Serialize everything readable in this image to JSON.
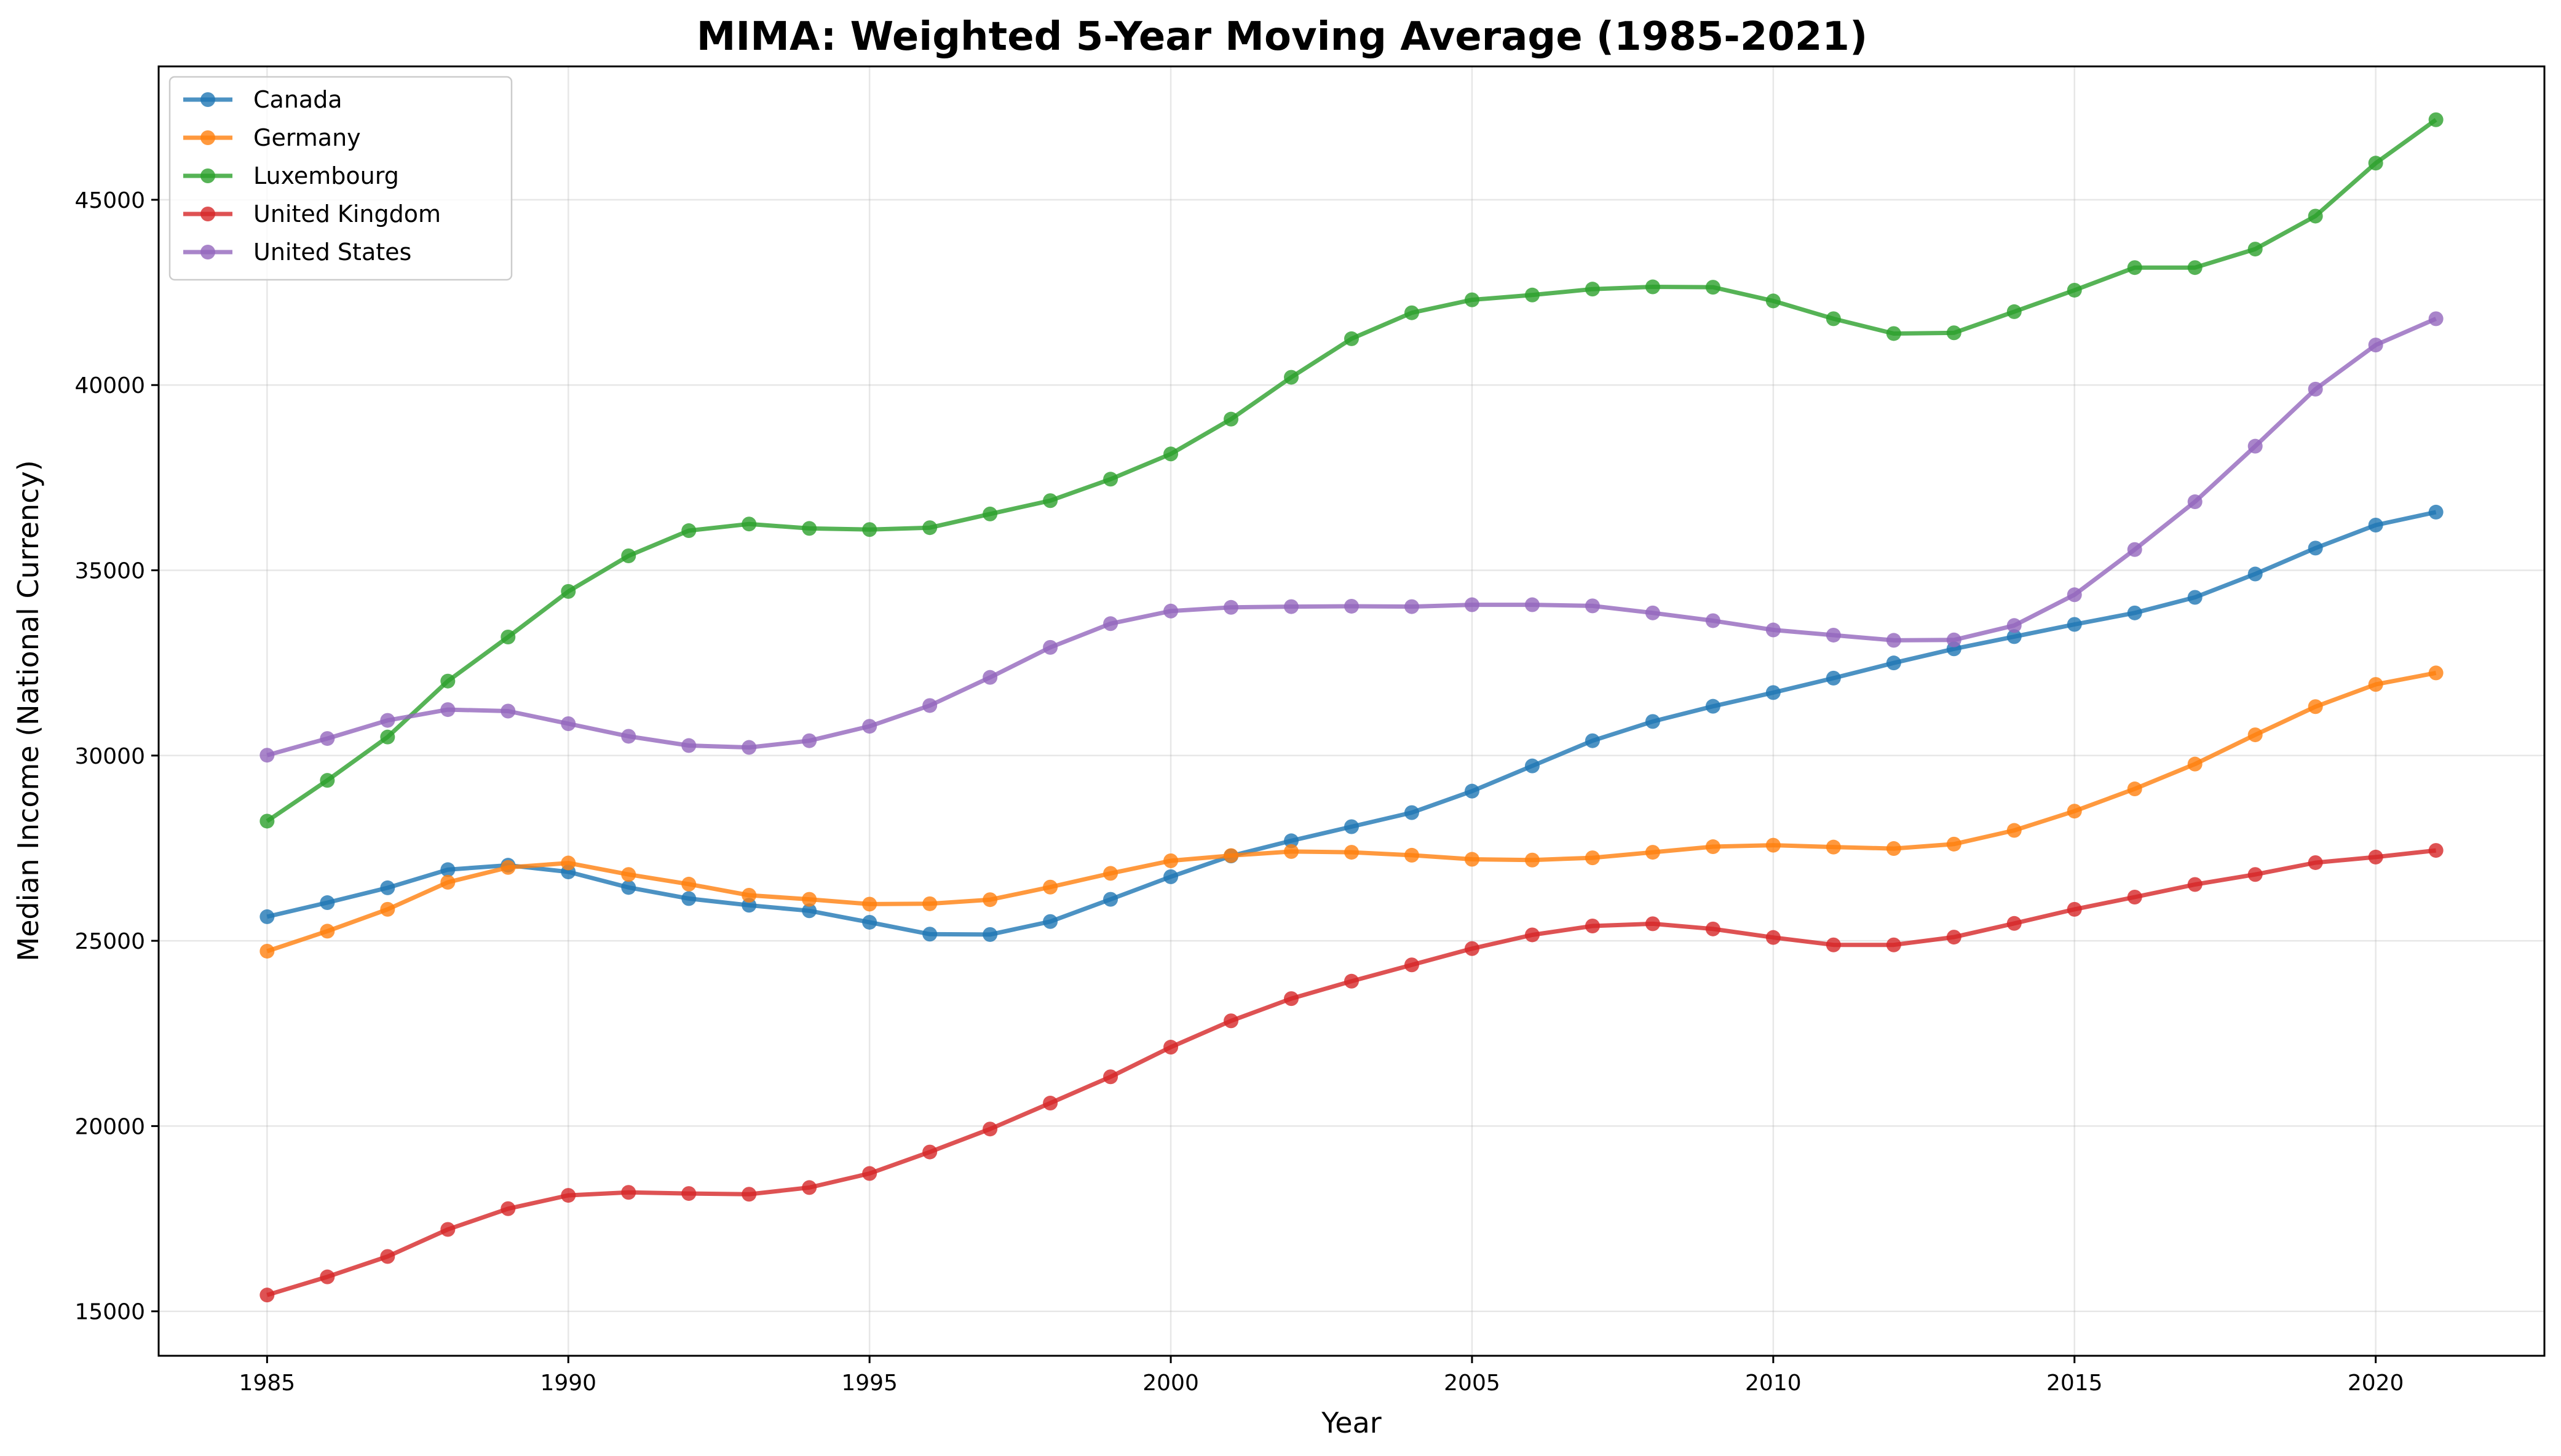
{
  "chart_data": {
    "type": "line",
    "title": "MIMA: Weighted 5-Year Moving Average (1985-2021)",
    "xlabel": "Year",
    "ylabel": "Median Income (National Currency)",
    "xlim": [
      1983.2,
      2022.8
    ],
    "ylim": [
      13800,
      48600
    ],
    "x_ticks": [
      1985,
      1990,
      1995,
      2000,
      2005,
      2010,
      2015,
      2020
    ],
    "y_ticks": [
      15000,
      20000,
      25000,
      30000,
      35000,
      40000,
      45000
    ],
    "grid": true,
    "legend_position": "upper left",
    "x": [
      1985,
      1986,
      1987,
      1988,
      1989,
      1990,
      1991,
      1992,
      1993,
      1994,
      1995,
      1996,
      1997,
      1998,
      1999,
      2000,
      2001,
      2002,
      2003,
      2004,
      2005,
      2006,
      2007,
      2008,
      2009,
      2010,
      2011,
      2012,
      2013,
      2014,
      2015,
      2016,
      2017,
      2018,
      2019,
      2020,
      2021
    ],
    "series": [
      {
        "name": "Canada",
        "color": "#1f77b4",
        "values": [
          25650,
          26030,
          26430,
          26920,
          27040,
          26860,
          26440,
          26140,
          25960,
          25810,
          25500,
          25180,
          25170,
          25520,
          26120,
          26730,
          27290,
          27700,
          28080,
          28460,
          29040,
          29720,
          30400,
          30920,
          31330,
          31700,
          32090,
          32500,
          32880,
          33210,
          33540,
          33850,
          34270,
          34900,
          35600,
          36220,
          36570
        ]
      },
      {
        "name": "Germany",
        "color": "#ff7f0e",
        "values": [
          24720,
          25260,
          25850,
          26580,
          26980,
          27100,
          26790,
          26530,
          26230,
          26120,
          25990,
          26000,
          26110,
          26450,
          26820,
          27160,
          27300,
          27410,
          27390,
          27310,
          27200,
          27180,
          27240,
          27390,
          27540,
          27580,
          27530,
          27490,
          27610,
          27980,
          28500,
          29100,
          29770,
          30560,
          31320,
          31920,
          32230
        ]
      },
      {
        "name": "Luxembourg",
        "color": "#2ca02c",
        "values": [
          28230,
          29330,
          30500,
          32010,
          33200,
          34430,
          35390,
          36070,
          36250,
          36130,
          36100,
          36150,
          36520,
          36880,
          37460,
          38140,
          39080,
          40210,
          41250,
          41950,
          42300,
          42430,
          42590,
          42650,
          42640,
          42270,
          41790,
          41390,
          41410,
          41980,
          42560,
          43170,
          43170,
          43670,
          44560,
          45990,
          47160
        ]
      },
      {
        "name": "United Kingdom",
        "color": "#d62728",
        "values": [
          15440,
          15930,
          16480,
          17210,
          17770,
          18130,
          18210,
          18180,
          18160,
          18340,
          18720,
          19300,
          19920,
          20620,
          21330,
          22130,
          22840,
          23440,
          23910,
          24350,
          24790,
          25160,
          25400,
          25460,
          25320,
          25090,
          24890,
          24890,
          25100,
          25470,
          25850,
          26180,
          26520,
          26790,
          27110,
          27260,
          27440
        ]
      },
      {
        "name": "United States",
        "color": "#9467bd",
        "values": [
          30010,
          30460,
          30950,
          31240,
          31200,
          30860,
          30520,
          30270,
          30220,
          30400,
          30790,
          31350,
          32110,
          32920,
          33560,
          33900,
          34000,
          34020,
          34030,
          34020,
          34070,
          34070,
          34040,
          33850,
          33640,
          33390,
          33250,
          33110,
          33120,
          33510,
          34340,
          35560,
          36850,
          38350,
          39890,
          41080,
          41790
        ]
      }
    ]
  }
}
